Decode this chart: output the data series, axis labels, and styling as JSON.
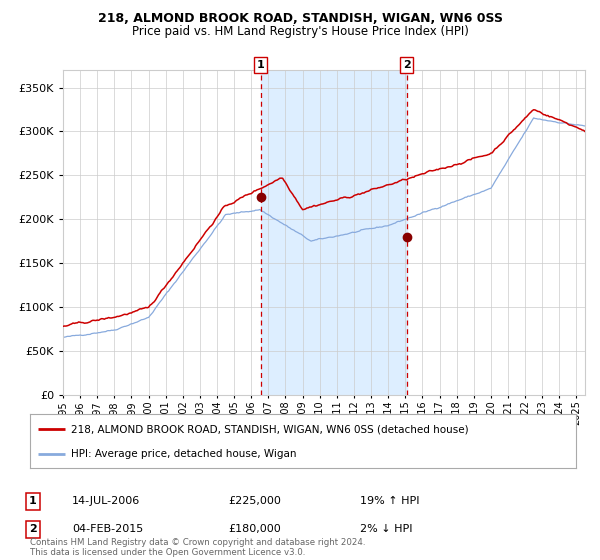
{
  "title1": "218, ALMOND BROOK ROAD, STANDISH, WIGAN, WN6 0SS",
  "title2": "Price paid vs. HM Land Registry's House Price Index (HPI)",
  "legend_line1": "218, ALMOND BROOK ROAD, STANDISH, WIGAN, WN6 0SS (detached house)",
  "legend_line2": "HPI: Average price, detached house, Wigan",
  "event1_label": "1",
  "event1_date": "14-JUL-2006",
  "event1_price": "£225,000",
  "event1_hpi": "19% ↑ HPI",
  "event2_label": "2",
  "event2_date": "04-FEB-2015",
  "event2_price": "£180,000",
  "event2_hpi": "2% ↓ HPI",
  "footer": "Contains HM Land Registry data © Crown copyright and database right 2024.\nThis data is licensed under the Open Government Licence v3.0.",
  "event1_x": 2006.54,
  "event2_x": 2015.09,
  "event1_y": 225000,
  "event2_y": 180000,
  "ylim": [
    0,
    370000
  ],
  "xlim_start": 1995.0,
  "xlim_end": 2025.5,
  "red_line_color": "#cc0000",
  "blue_line_color": "#88aadd",
  "shade_color": "#ddeeff",
  "dashed_color": "#cc0000",
  "marker_color": "#880000",
  "bg_color": "#ffffff",
  "grid_color": "#cccccc"
}
